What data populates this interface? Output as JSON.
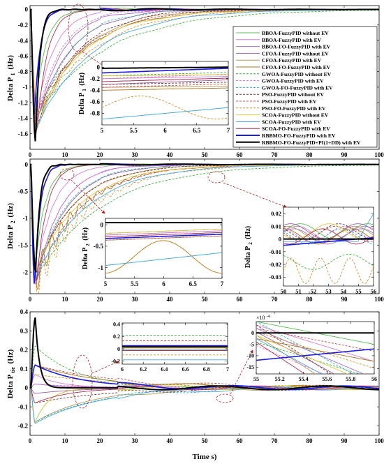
{
  "chart_data": [
    {
      "type": "line",
      "ylabel": "Delta P",
      "ylabel_sub": "1",
      "ylabel_unit": "(Hz)",
      "xlim": [
        0,
        100
      ],
      "ylim": [
        -1.8,
        0.05
      ],
      "xticks": [
        0,
        10,
        20,
        30,
        40,
        50,
        60,
        70,
        80,
        90,
        100
      ],
      "yticks": [
        0,
        -0.2,
        -0.4,
        -0.6,
        -0.8,
        -1,
        -1.2,
        -1.4,
        -1.6
      ],
      "legend_position": "right",
      "legend": [
        {
          "label": "BBOA-FuzzyPID without EV",
          "color": "#55c050",
          "dash": "solid"
        },
        {
          "label": "BBOA-FuzzyPID with EV",
          "color": "#d67fcf",
          "dash": "solid"
        },
        {
          "label": "BBOA-FO-FuzzyPID with EV",
          "color": "#a06fd0",
          "dash": "solid"
        },
        {
          "label": "CFOA-FuzzyPID without EV",
          "color": "#9a5fa0",
          "dash": "solid"
        },
        {
          "label": "CFOA-FuzzyPID with EV",
          "color": "#b89a5a",
          "dash": "solid"
        },
        {
          "label": "CFOA-FO-FuzzyPID with EV",
          "color": "#a8741e",
          "dash": "solid"
        },
        {
          "label": "GWOA-FuzzyPID without EV",
          "color": "#3fae3f",
          "dash": "dashed"
        },
        {
          "label": "GWOA-FuzzyPID with EV",
          "color": "#e070d0",
          "dash": "dashed"
        },
        {
          "label": "GWOA-FO-FuzzyPID with EV",
          "color": "#30b0c0",
          "dash": "dashed"
        },
        {
          "label": "PSO-FuzzyPID without EV",
          "color": "#7a3030",
          "dash": "dashed"
        },
        {
          "label": "PSO-FuzzyPID with EV",
          "color": "#c05050",
          "dash": "dashed"
        },
        {
          "label": "PSO-FO-FuzzyPID with EV",
          "color": "#d39030",
          "dash": "dashed"
        },
        {
          "label": "SCOA-FuzzyPID without EV",
          "color": "#e8c84a",
          "dash": "solid"
        },
        {
          "label": "SCOA-FuzzyPID with EV",
          "color": "#4aa8e0",
          "dash": "solid"
        },
        {
          "label": "SCOA-FO-FuzzyPID with EV",
          "color": "#b03050",
          "dash": "solid"
        },
        {
          "label": "RBBMO-FO-FuzzyPID with EV",
          "color": "#1a1ae0",
          "dash": "solid"
        },
        {
          "label": "RBBMO-FO-FuzzyPID+PI(1+DD) with EV",
          "color": "#000000",
          "dash": "solid"
        }
      ],
      "inset": {
        "ylabel": "Delta P",
        "ylabel_sub": "1",
        "ylabel_unit": "(Hz)",
        "xlim": [
          5,
          7
        ],
        "ylim": [
          -1.0,
          0.1
        ],
        "xticks": [
          5,
          5.5,
          6,
          6.5,
          7
        ],
        "yticks": [
          0,
          -0.2,
          -0.4,
          -0.6,
          -0.8
        ]
      }
    },
    {
      "type": "line",
      "ylabel": "Delta P",
      "ylabel_sub": "2",
      "ylabel_unit": "(Hz)",
      "xlim": [
        0,
        100
      ],
      "ylim": [
        -2.4,
        0.1
      ],
      "xticks": [
        0,
        10,
        20,
        30,
        40,
        50,
        60,
        70,
        80,
        90,
        100
      ],
      "yticks": [
        0,
        -0.5,
        -1,
        -1.5,
        -2
      ],
      "inset_left": {
        "ylabel": "Delta P",
        "ylabel_sub": "2",
        "ylabel_unit": "(Hz)",
        "xlim": [
          5,
          7
        ],
        "ylim": [
          -1.25,
          0.15
        ],
        "xticks": [
          5,
          5.5,
          6,
          6.5,
          7
        ],
        "yticks": [
          0,
          -0.5,
          -1
        ]
      },
      "inset_right": {
        "ylabel": "Delta P",
        "ylabel_sub": "2",
        "ylabel_unit": "(Hz)",
        "xlim": [
          50,
          56
        ],
        "ylim": [
          -0.037,
          0.025
        ],
        "xticks": [
          50,
          51,
          52,
          53,
          54,
          55,
          56
        ],
        "yticks": [
          0.02,
          0.01,
          0,
          -0.01,
          -0.02,
          -0.03
        ]
      }
    },
    {
      "type": "line",
      "ylabel": "Delta P",
      "ylabel_sub": "tie",
      "ylabel_unit": "(Hz)",
      "xlabel": "Time s)",
      "xlim": [
        0,
        100
      ],
      "ylim": [
        -0.25,
        0.4
      ],
      "xticks": [
        0,
        10,
        20,
        30,
        40,
        50,
        60,
        70,
        80,
        90,
        100
      ],
      "yticks": [
        0.4,
        0.3,
        0.2,
        0.1,
        0,
        -0.1,
        -0.2
      ],
      "inset_left": {
        "xlim": [
          6,
          7
        ],
        "ylim": [
          -0.25,
          0.42
        ],
        "xticks": [
          6,
          6.2,
          6.4,
          6.6,
          6.8,
          7
        ],
        "yticks": [
          0.4,
          0.2,
          0,
          -0.2
        ]
      },
      "inset_right": {
        "exponent_label": "×10",
        "exponent_power": "-4",
        "xlim": [
          55,
          56
        ],
        "ylim": [
          -18,
          5
        ],
        "xticks": [
          55,
          55.2,
          55.4,
          55.6,
          55.8,
          56
        ],
        "yticks": [
          0,
          -5,
          -10,
          -15
        ]
      }
    }
  ]
}
